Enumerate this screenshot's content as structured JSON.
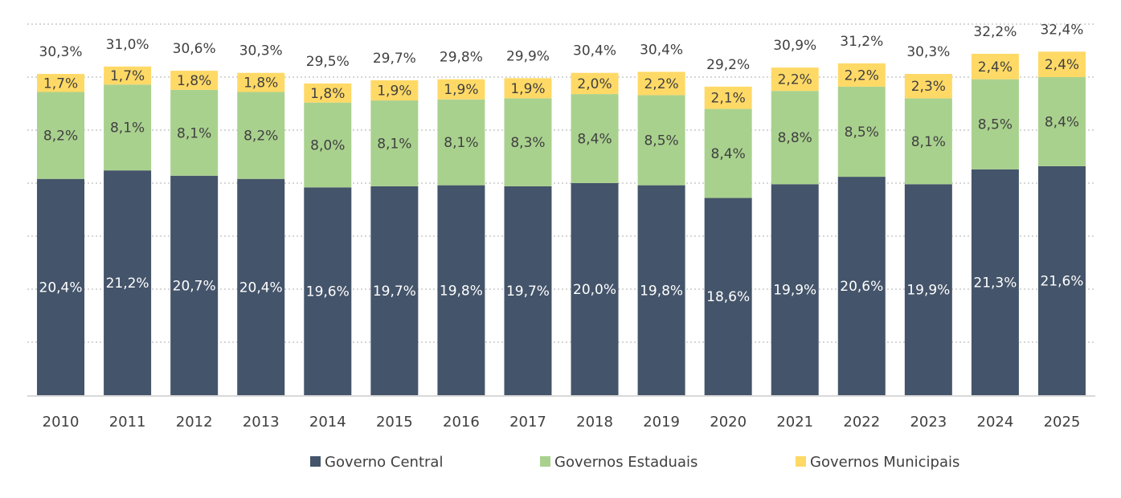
{
  "chart_data": {
    "type": "bar",
    "stacked": true,
    "title": "",
    "xlabel": "",
    "ylabel": "",
    "ylim": [
      0,
      35
    ],
    "y_grid_step": 5,
    "grid": true,
    "y_axis_visible": false,
    "legend_position": "bottom",
    "categories": [
      "2010",
      "2011",
      "2012",
      "2013",
      "2014",
      "2015",
      "2016",
      "2017",
      "2018",
      "2019",
      "2020",
      "2021",
      "2022",
      "2023",
      "2024",
      "2025"
    ],
    "series": [
      {
        "name": "Governo Central",
        "color": "#44546a",
        "label_color": "#ffffff",
        "values": [
          20.4,
          21.2,
          20.7,
          20.4,
          19.6,
          19.7,
          19.8,
          19.7,
          20.0,
          19.8,
          18.6,
          19.9,
          20.6,
          19.9,
          21.3,
          21.6
        ],
        "labels": [
          "20,4%",
          "21,2%",
          "20,7%",
          "20,4%",
          "19,6%",
          "19,7%",
          "19,8%",
          "19,7%",
          "20,0%",
          "19,8%",
          "18,6%",
          "19,9%",
          "20,6%",
          "19,9%",
          "21,3%",
          "21,6%"
        ]
      },
      {
        "name": "Governos Estaduais",
        "color": "#a9d18e",
        "label_color": "#404040",
        "values": [
          8.2,
          8.1,
          8.1,
          8.2,
          8.0,
          8.1,
          8.1,
          8.3,
          8.4,
          8.5,
          8.4,
          8.8,
          8.5,
          8.1,
          8.5,
          8.4
        ],
        "labels": [
          "8,2%",
          "8,1%",
          "8,1%",
          "8,2%",
          "8,0%",
          "8,1%",
          "8,1%",
          "8,3%",
          "8,4%",
          "8,5%",
          "8,4%",
          "8,8%",
          "8,5%",
          "8,1%",
          "8,5%",
          "8,4%"
        ]
      },
      {
        "name": "Governos Municipais",
        "color": "#ffd966",
        "label_color": "#404040",
        "values": [
          1.7,
          1.7,
          1.8,
          1.8,
          1.8,
          1.9,
          1.9,
          1.9,
          2.0,
          2.2,
          2.1,
          2.2,
          2.2,
          2.3,
          2.4,
          2.4
        ],
        "labels": [
          "1,7%",
          "1,7%",
          "1,8%",
          "1,8%",
          "1,8%",
          "1,9%",
          "1,9%",
          "1,9%",
          "2,0%",
          "2,2%",
          "2,1%",
          "2,2%",
          "2,2%",
          "2,3%",
          "2,4%",
          "2,4%"
        ]
      }
    ],
    "totals": {
      "values": [
        30.3,
        31.0,
        30.6,
        30.3,
        29.5,
        29.7,
        29.8,
        29.9,
        30.4,
        30.4,
        29.2,
        30.9,
        31.2,
        30.3,
        32.2,
        32.4
      ],
      "labels": [
        "30,3%",
        "31,0%",
        "30,6%",
        "30,3%",
        "29,5%",
        "29,7%",
        "29,8%",
        "29,9%",
        "30,4%",
        "30,4%",
        "29,2%",
        "30,9%",
        "31,2%",
        "30,3%",
        "32,2%",
        "32,4%"
      ]
    }
  }
}
